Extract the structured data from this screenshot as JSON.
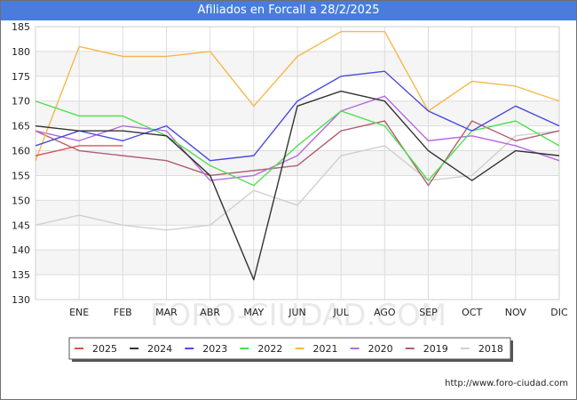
{
  "title": "Afiliados en Forcall a 28/2/2025",
  "source": "http://www.foro-ciudad.com",
  "watermark": "FORO-CIUDAD.COM",
  "chart_data": {
    "type": "line",
    "title": "Afiliados en Forcall a 28/2/2025",
    "xlabel": "",
    "ylabel": "",
    "categories": [
      "",
      "ENE",
      "FEB",
      "MAR",
      "ABR",
      "MAY",
      "JUN",
      "JUL",
      "AGO",
      "SEP",
      "OCT",
      "NOV",
      "DIC"
    ],
    "x_tick_labels": [
      "ENE",
      "FEB",
      "MAR",
      "ABR",
      "MAY",
      "JUN",
      "JUL",
      "AGO",
      "SEP",
      "OCT",
      "NOV",
      "DIC"
    ],
    "ylim": [
      130,
      185
    ],
    "y_ticks": [
      130,
      135,
      140,
      145,
      150,
      155,
      160,
      165,
      170,
      175,
      180,
      185
    ],
    "grid": true,
    "legend_position": "bottom",
    "series": [
      {
        "name": "2025",
        "color": "#e05050",
        "values": [
          159,
          161,
          161,
          null,
          null,
          null,
          null,
          null,
          null,
          null,
          null,
          null,
          null
        ]
      },
      {
        "name": "2024",
        "color": "#333333",
        "values": [
          165,
          164,
          164,
          163,
          155,
          134,
          169,
          172,
          170,
          160,
          154,
          160,
          159
        ]
      },
      {
        "name": "2023",
        "color": "#4a4ae0",
        "values": [
          161,
          164,
          162,
          165,
          158,
          159,
          170,
          175,
          176,
          168,
          164,
          169,
          165
        ]
      },
      {
        "name": "2022",
        "color": "#4de04d",
        "values": [
          170,
          167,
          167,
          163,
          157,
          153,
          161,
          168,
          165,
          154,
          164,
          166,
          161
        ]
      },
      {
        "name": "2021",
        "color": "#f5b84a",
        "values": [
          158,
          181,
          179,
          179,
          180,
          169,
          179,
          184,
          184,
          168,
          174,
          173,
          170
        ]
      },
      {
        "name": "2020",
        "color": "#b668e0",
        "values": [
          164,
          162,
          165,
          164,
          154,
          155,
          159,
          168,
          171,
          162,
          163,
          161,
          158
        ]
      },
      {
        "name": "2019",
        "color": "#b06070",
        "values": [
          164,
          160,
          159,
          158,
          155,
          156,
          157,
          164,
          166,
          153,
          166,
          162,
          164
        ]
      },
      {
        "name": "2018",
        "color": "#d0d0d0",
        "values": [
          145,
          147,
          145,
          144,
          145,
          152,
          149,
          159,
          161,
          154,
          155,
          163,
          164
        ]
      }
    ]
  }
}
